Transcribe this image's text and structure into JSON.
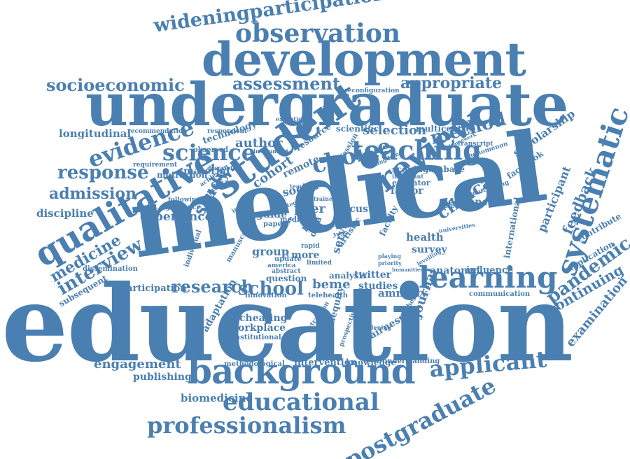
{
  "word_color": "#4a7fb1",
  "background_color": "#ffffff",
  "words": {
    "education": "education",
    "medical": "medical",
    "undergraduate": "undergraduate",
    "development": "development",
    "student": "student",
    "background": "background",
    "observation": "observation",
    "wideningparticipation": "wideningparticipation",
    "qualitative": "qualitative",
    "review": "review",
    "systematic": "systematic",
    "learning": "learning",
    "teaching": "teaching",
    "science": "science",
    "evidence": "evidence",
    "choice": "choice",
    "educational": "educational",
    "professionalism": "professionalism",
    "postgraduate": "postgraduate",
    "applicant": "applicant",
    "pandemic": "pandemic",
    "socioeconomic": "socioeconomic",
    "assessment": "assessment",
    "appropriate": "appropriate",
    "response": "response",
    "admission": "admission",
    "interview": "interview",
    "medicine": "medicine",
    "method": "method",
    "clinical": "clinical",
    "feedback": "feedback",
    "research": "research",
    "school": "school",
    "engagement": "engagement",
    "continuing": "continuing",
    "examination": "examination",
    "participant": "participant",
    "longitudinal": "longitudinal",
    "author": "author",
    "selection": "selection",
    "study": "study",
    "experience": "experience",
    "discipline": "discipline",
    "participation": "participation",
    "publishing": "publishing",
    "biomedicine": "biomedicine",
    "scholarship": "scholarship",
    "facebook": "facebook",
    "enhance": "enhance",
    "international": "international",
    "anatomy": "anatomy",
    "influence": "influence",
    "journal": "journal",
    "amnesty": "amnesty",
    "studies": "studies",
    "beme": "beme",
    "health": "health",
    "survey": "survey",
    "focus": "focus",
    "service": "service",
    "peer": "peer",
    "social": "social",
    "cohort": "cohort",
    "guide": "guide",
    "group": "group",
    "more": "more",
    "workplace": "workplace",
    "cheating": "cheating",
    "intervention": "intervention",
    "knowledge": "knowledge",
    "factor": "factor",
    "scoping": "scoping",
    "database": "database",
    "multicentre": "multicentre",
    "scientific": "scientific",
    "remote": "remote",
    "resource": "resource",
    "technology": "technology",
    "material": "material",
    "motivation": "motivation",
    "subsequent": "subsequent",
    "contribute": "contribute",
    "application": "application",
    "communication": "communication",
    "twitter": "twitter",
    "analysis": "analysis",
    "inequity": "inequity",
    "fairness": "fairness",
    "adaptation": "adaptation",
    "innovation": "innovation",
    "telehealth": "telehealth",
    "question": "question",
    "methodological": "methodological",
    "understanding": "understanding",
    "institutional": "institutional",
    "dissemination": "dissemination",
    "guidance": "guidance",
    "following": "following",
    "requirement": "requirement",
    "recommendation": "recommendation",
    "respondent": "respondent",
    "observed": "observed",
    "description": "description",
    "achieving": "achieving",
    "reconfiguration": "reconfiguration",
    "exceptional": "exceptional",
    "transcript": "transcript",
    "phenomenon": "phenomenon",
    "motivating": "motivating",
    "adapting": "adapting",
    "universities": "universities",
    "educator": "educator",
    "important": "important",
    "kingdom": "kingdom",
    "profession": "profession",
    "individual": "individual",
    "manuscript": "manuscript",
    "update": "update",
    "america": "america",
    "limited": "limited",
    "abstract": "abstract",
    "paper": "paper",
    "media": "media",
    "artistic": "artistic",
    "widening": "widening",
    "extraction": "extraction",
    "prospective": "prospective",
    "synthesis": "synthesis",
    "impact": "impact",
    "future": "future",
    "data": "data",
    "best": "best",
    "rapid": "rapid",
    "faculty": "faculty",
    "quality": "quality",
    "teacher": "teacher",
    "framework": "framework",
    "instrument": "instrument",
    "levelling": "levelling",
    "playing": "playing",
    "priority": "priority",
    "humanities": "humanities",
    "life": "life",
    "care": "care",
    "year": "year",
    "covid": "covid",
    "trainee": "trainee",
    "strategy": "strategy"
  }
}
